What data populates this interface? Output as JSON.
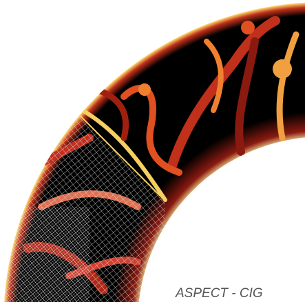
{
  "caption": "ASPECT - CIG"
}
